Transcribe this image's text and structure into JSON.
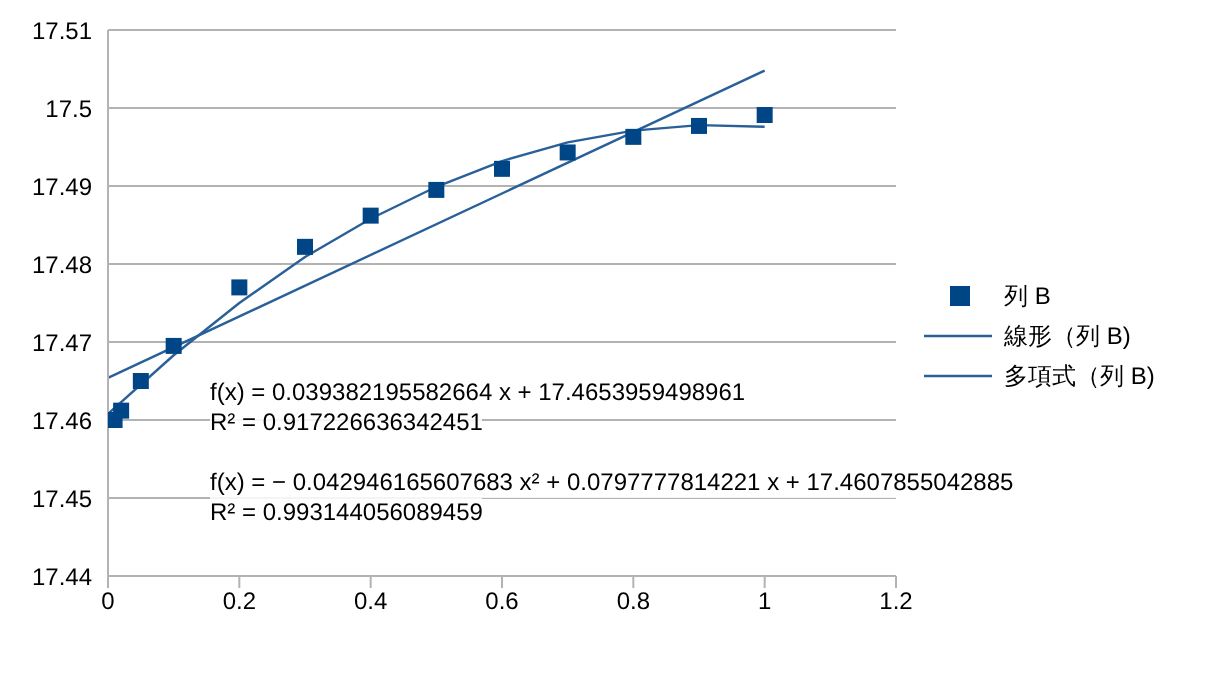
{
  "chart_data": {
    "type": "scatter",
    "xlim": [
      0,
      1.2
    ],
    "xticks": [
      0,
      0.2,
      0.4,
      0.6,
      0.8,
      1,
      1.2
    ],
    "ylim": [
      17.44,
      17.51
    ],
    "yticks": [
      17.44,
      17.45,
      17.46,
      17.47,
      17.48,
      17.49,
      17.5,
      17.51
    ],
    "grid": "y",
    "legend": "right",
    "marker": "square",
    "series": [
      {
        "name": "列 B",
        "color": "#004586",
        "x": [
          0.01,
          0.02,
          0.05,
          0.1,
          0.2,
          0.3,
          0.4,
          0.5,
          0.6,
          0.7,
          0.8,
          0.9,
          1
        ],
        "values": [
          17.46,
          17.4612,
          17.465,
          17.4695,
          17.477,
          17.4822,
          17.4862,
          17.4895,
          17.4922,
          17.4943,
          17.4963,
          17.4977,
          17.4991
        ]
      },
      {
        "name": "線形（列 B)",
        "type": "line",
        "marker": "none",
        "color": "#2a6099",
        "x": [
          0,
          1
        ],
        "values": [
          17.4654,
          17.5048
        ]
      },
      {
        "name": "多項式（列 B)",
        "type": "line",
        "marker": "none",
        "color": "#2a6099",
        "x": [
          0,
          0.1,
          0.2,
          0.3,
          0.4,
          0.5,
          0.6,
          0.7,
          0.8,
          0.9,
          1
        ],
        "values": [
          17.4608,
          17.4683,
          17.475,
          17.4809,
          17.4858,
          17.4899,
          17.4932,
          17.4956,
          17.4971,
          17.4978,
          17.4976
        ]
      }
    ],
    "annotations": [
      "f(x) = 0.039382195582664 x + 17.4653959498961",
      "R² = 0.917226636342451",
      "f(x) = − 0.042946165607683 x² + 0.0797777814221 x + 17.4607855042885",
      "R² = 0.993144056089459"
    ]
  }
}
